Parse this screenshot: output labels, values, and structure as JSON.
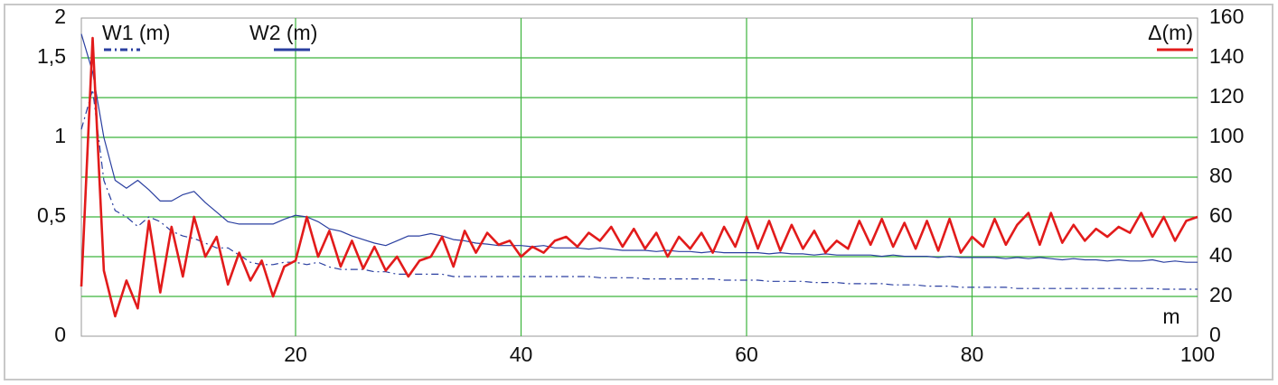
{
  "chart_data": {
    "type": "line",
    "xlabel": "m",
    "x": [
      1,
      2,
      3,
      4,
      5,
      6,
      7,
      8,
      9,
      10,
      11,
      12,
      13,
      14,
      15,
      16,
      17,
      18,
      19,
      20,
      21,
      22,
      23,
      24,
      25,
      26,
      27,
      28,
      29,
      30,
      31,
      32,
      33,
      34,
      35,
      36,
      37,
      38,
      39,
      40,
      41,
      42,
      43,
      44,
      45,
      46,
      47,
      48,
      49,
      50,
      51,
      52,
      53,
      54,
      55,
      56,
      57,
      58,
      59,
      60,
      61,
      62,
      63,
      64,
      65,
      66,
      67,
      68,
      69,
      70,
      71,
      72,
      73,
      74,
      75,
      76,
      77,
      78,
      79,
      80,
      81,
      82,
      83,
      84,
      85,
      86,
      87,
      88,
      89,
      90,
      91,
      92,
      93,
      94,
      95,
      96,
      97,
      98,
      99,
      100
    ],
    "xlim": [
      1,
      100
    ],
    "xticks": [
      20,
      40,
      60,
      80,
      100
    ],
    "ylim": [
      0,
      2
    ],
    "yticks": [
      0,
      {
        "value": 0.5,
        "label": "0,5"
      },
      1,
      {
        "value": 1.5,
        "label": "1,5"
      },
      2
    ],
    "y2lim": [
      0,
      160
    ],
    "y2ticks": [
      0,
      20,
      40,
      60,
      80,
      100,
      120,
      140,
      160
    ],
    "grid": true,
    "series": [
      {
        "name": "W1 (m)",
        "color": "#2a3fa0",
        "style": "dash-dot",
        "values": [
          1.05,
          1.3,
          0.73,
          0.54,
          0.5,
          0.46,
          0.5,
          0.48,
          0.44,
          0.42,
          0.41,
          0.39,
          0.37,
          0.37,
          0.34,
          0.31,
          0.3,
          0.3,
          0.31,
          0.31,
          0.3,
          0.31,
          0.29,
          0.28,
          0.28,
          0.28,
          0.27,
          0.27,
          0.26,
          0.26,
          0.26,
          0.26,
          0.26,
          0.25,
          0.25,
          0.25,
          0.25,
          0.25,
          0.25,
          0.25,
          0.25,
          0.25,
          0.25,
          0.25,
          0.25,
          0.25,
          0.245,
          0.245,
          0.245,
          0.245,
          0.24,
          0.24,
          0.24,
          0.24,
          0.24,
          0.24,
          0.24,
          0.235,
          0.235,
          0.235,
          0.235,
          0.23,
          0.23,
          0.23,
          0.23,
          0.225,
          0.225,
          0.225,
          0.22,
          0.22,
          0.22,
          0.22,
          0.215,
          0.215,
          0.215,
          0.21,
          0.21,
          0.21,
          0.205,
          0.205,
          0.205,
          0.205,
          0.205,
          0.2,
          0.2,
          0.2,
          0.2,
          0.2,
          0.2,
          0.2,
          0.2,
          0.2,
          0.2,
          0.2,
          0.2,
          0.2,
          0.197,
          0.197,
          0.197,
          0.197
        ]
      },
      {
        "name": "W2 (m)",
        "color": "#2a3fa0",
        "style": "solid",
        "values": [
          1.8,
          1.41,
          1.0,
          0.73,
          0.68,
          0.73,
          0.67,
          0.6,
          0.6,
          0.64,
          0.66,
          0.59,
          0.53,
          0.48,
          0.47,
          0.47,
          0.47,
          0.47,
          0.49,
          0.51,
          0.5,
          0.48,
          0.45,
          0.44,
          0.42,
          0.405,
          0.39,
          0.38,
          0.4,
          0.42,
          0.42,
          0.43,
          0.42,
          0.405,
          0.4,
          0.39,
          0.386,
          0.38,
          0.38,
          0.38,
          0.375,
          0.38,
          0.37,
          0.37,
          0.37,
          0.365,
          0.37,
          0.365,
          0.36,
          0.36,
          0.36,
          0.355,
          0.36,
          0.355,
          0.355,
          0.35,
          0.355,
          0.35,
          0.35,
          0.35,
          0.35,
          0.345,
          0.35,
          0.345,
          0.345,
          0.34,
          0.345,
          0.34,
          0.34,
          0.34,
          0.34,
          0.335,
          0.34,
          0.335,
          0.335,
          0.335,
          0.33,
          0.335,
          0.33,
          0.33,
          0.33,
          0.33,
          0.325,
          0.33,
          0.325,
          0.33,
          0.325,
          0.32,
          0.325,
          0.32,
          0.32,
          0.315,
          0.32,
          0.315,
          0.315,
          0.32,
          0.31,
          0.315,
          0.31,
          0.31
        ]
      },
      {
        "name": "Δ(m)",
        "color": "#e21b1b",
        "style": "solid",
        "axis": "y2",
        "values": [
          25,
          150,
          33,
          10,
          28,
          14,
          58,
          22,
          55,
          30,
          60,
          40,
          50,
          26,
          42,
          28,
          38,
          20,
          35,
          38,
          60,
          40,
          53,
          35,
          48,
          34,
          45,
          33,
          40,
          30,
          38,
          40,
          50,
          35,
          53,
          42,
          52,
          46,
          48,
          40,
          45,
          42,
          48,
          50,
          45,
          52,
          48,
          55,
          45,
          54,
          44,
          52,
          40,
          50,
          44,
          52,
          42,
          55,
          45,
          60,
          44,
          58,
          43,
          56,
          44,
          53,
          42,
          48,
          44,
          58,
          46,
          59,
          45,
          57,
          44,
          58,
          43,
          59,
          42,
          50,
          45,
          59,
          46,
          56,
          62,
          46,
          62,
          47,
          56,
          48,
          54,
          50,
          55,
          52,
          62,
          50,
          60,
          48,
          58,
          60
        ]
      }
    ]
  }
}
